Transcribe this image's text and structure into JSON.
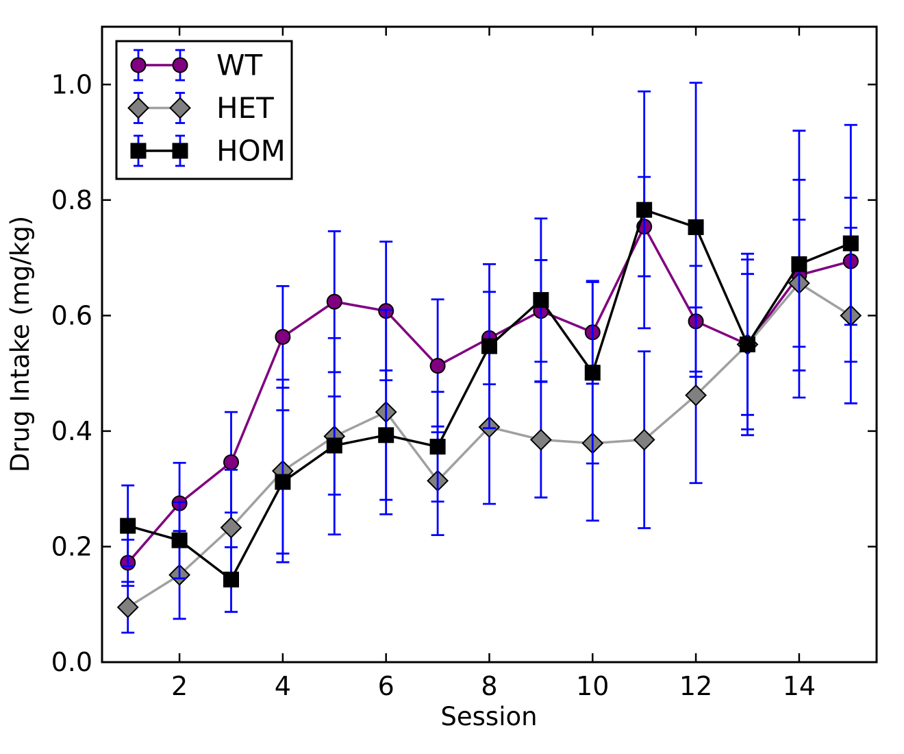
{
  "chart_data": {
    "type": "line",
    "title": "",
    "xlabel": "Session",
    "ylabel": "Drug Intake (mg/kg)",
    "x": [
      1,
      2,
      3,
      4,
      5,
      6,
      7,
      8,
      9,
      10,
      11,
      12,
      13,
      14,
      15
    ],
    "xlim": [
      0.5,
      15.5
    ],
    "ylim": [
      0,
      1.1
    ],
    "xticks": [
      2,
      4,
      6,
      8,
      10,
      12,
      14
    ],
    "ytick_values": [
      0.0,
      0.2,
      0.4,
      0.6,
      0.8,
      1.0
    ],
    "ytick_labels": [
      "0.0",
      "0.2",
      "0.4",
      "0.6",
      "0.8",
      "1.0"
    ],
    "grid": false,
    "legend_position": "upper-left",
    "error_bar_color": "#0000ff",
    "frame_color": "#000000",
    "series": [
      {
        "name": "WT",
        "marker": "circle",
        "marker_color": "#800080",
        "line_color": "#800080",
        "values": [
          0.172,
          0.275,
          0.346,
          0.563,
          0.624,
          0.608,
          0.513,
          0.561,
          0.608,
          0.571,
          0.754,
          0.59,
          0.55,
          0.67,
          0.694
        ],
        "errors": [
          0.04,
          0.07,
          0.087,
          0.088,
          0.122,
          0.12,
          0.115,
          0.08,
          0.088,
          0.089,
          0.086,
          0.096,
          0.157,
          0.165,
          0.11
        ]
      },
      {
        "name": "HET",
        "marker": "diamond",
        "marker_color": "#808080",
        "line_color": "#a0a0a0",
        "values": [
          0.095,
          0.151,
          0.233,
          0.331,
          0.391,
          0.433,
          0.314,
          0.407,
          0.385,
          0.379,
          0.385,
          0.462,
          0.55,
          0.656,
          0.6
        ],
        "errors": [
          0.044,
          0.076,
          0.1,
          0.158,
          0.17,
          0.177,
          0.094,
          0.133,
          0.1,
          0.134,
          0.153,
          0.152,
          0.122,
          0.11,
          0.152
        ]
      },
      {
        "name": "HOM",
        "marker": "square",
        "marker_color": "#000000",
        "line_color": "#000000",
        "values": [
          0.236,
          0.211,
          0.143,
          0.312,
          0.375,
          0.393,
          0.373,
          0.547,
          0.627,
          0.501,
          0.783,
          0.753,
          0.55,
          0.689,
          0.725
        ],
        "errors": [
          0.07,
          0.066,
          0.056,
          0.124,
          0.085,
          0.112,
          0.095,
          0.142,
          0.141,
          0.157,
          0.205,
          0.25,
          0.147,
          0.231,
          0.205
        ]
      }
    ]
  }
}
